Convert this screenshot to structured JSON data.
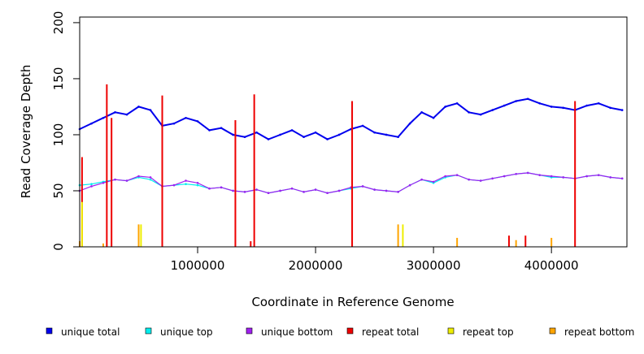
{
  "chart_data": {
    "type": "line",
    "title": "",
    "xlabel": "Coordinate in Reference Genome",
    "ylabel": "Read Coverage Depth",
    "xlim": [
      0,
      4640000
    ],
    "ylim": [
      0,
      205
    ],
    "x_ticks": [
      1000000,
      2000000,
      3000000,
      4000000
    ],
    "x_tick_labels": [
      "1000000",
      "2000000",
      "3000000",
      "4000000"
    ],
    "y_ticks": [
      0,
      50,
      100,
      150,
      200
    ],
    "y_tick_labels": [
      "0",
      "50",
      "100",
      "150",
      "200"
    ],
    "grid": false,
    "legend_position": "bottom",
    "series": [
      {
        "name": "unique total",
        "color": "#0000ee",
        "x": [
          0,
          100000,
          200000,
          300000,
          400000,
          500000,
          600000,
          700000,
          800000,
          900000,
          1000000,
          1100000,
          1200000,
          1300000,
          1400000,
          1500000,
          1600000,
          1700000,
          1800000,
          1900000,
          2000000,
          2100000,
          2200000,
          2300000,
          2400000,
          2500000,
          2600000,
          2700000,
          2800000,
          2900000,
          3000000,
          3100000,
          3200000,
          3300000,
          3400000,
          3500000,
          3600000,
          3700000,
          3800000,
          3900000,
          4000000,
          4100000,
          4200000,
          4300000,
          4400000,
          4500000,
          4600000
        ],
        "values": [
          105,
          110,
          115,
          120,
          118,
          125,
          122,
          108,
          110,
          115,
          112,
          104,
          106,
          100,
          98,
          102,
          96,
          100,
          104,
          98,
          102,
          96,
          100,
          105,
          108,
          102,
          100,
          98,
          110,
          120,
          115,
          125,
          128,
          120,
          118,
          122,
          126,
          130,
          132,
          128,
          125,
          124,
          122,
          126,
          128,
          124,
          122
        ]
      },
      {
        "name": "unique top",
        "color": "#00eeee",
        "x": [
          0,
          100000,
          200000,
          300000,
          400000,
          500000,
          600000,
          700000,
          800000,
          900000,
          1000000,
          1100000,
          1200000,
          1300000,
          1400000,
          1500000,
          1600000,
          1700000,
          1800000,
          1900000,
          2000000,
          2100000,
          2200000,
          2300000,
          2400000,
          2500000,
          2600000,
          2700000,
          2800000,
          2900000,
          3000000,
          3100000,
          3200000,
          3300000,
          3400000,
          3500000,
          3600000,
          3700000,
          3800000,
          3900000,
          4000000,
          4100000,
          4200000,
          4300000,
          4400000,
          4500000,
          4600000
        ],
        "values": [
          55,
          56,
          58,
          60,
          59,
          62,
          60,
          54,
          55,
          56,
          55,
          52,
          53,
          50,
          49,
          51,
          48,
          50,
          52,
          49,
          51,
          48,
          50,
          52,
          54,
          51,
          50,
          49,
          55,
          60,
          57,
          62,
          64,
          60,
          59,
          61,
          63,
          65,
          66,
          64,
          62,
          62,
          61,
          63,
          64,
          62,
          61
        ]
      },
      {
        "name": "unique bottom",
        "color": "#a020f0",
        "x": [
          0,
          100000,
          200000,
          300000,
          400000,
          500000,
          600000,
          700000,
          800000,
          900000,
          1000000,
          1100000,
          1200000,
          1300000,
          1400000,
          1500000,
          1600000,
          1700000,
          1800000,
          1900000,
          2000000,
          2100000,
          2200000,
          2300000,
          2400000,
          2500000,
          2600000,
          2700000,
          2800000,
          2900000,
          3000000,
          3100000,
          3200000,
          3300000,
          3400000,
          3500000,
          3600000,
          3700000,
          3800000,
          3900000,
          4000000,
          4100000,
          4200000,
          4300000,
          4400000,
          4500000,
          4600000
        ],
        "values": [
          50,
          54,
          57,
          60,
          59,
          63,
          62,
          54,
          55,
          59,
          57,
          52,
          53,
          50,
          49,
          51,
          48,
          50,
          52,
          49,
          51,
          48,
          50,
          53,
          54,
          51,
          50,
          49,
          55,
          60,
          58,
          63,
          64,
          60,
          59,
          61,
          63,
          65,
          66,
          64,
          63,
          62,
          61,
          63,
          64,
          62,
          61
        ]
      },
      {
        "name": "repeat total",
        "color": "#ee0000",
        "x": [
          20000,
          230000,
          270000,
          700000,
          1320000,
          1450000,
          1480000,
          2310000,
          3640000,
          3780000,
          4200000
        ],
        "values": [
          80,
          145,
          115,
          135,
          113,
          5,
          136,
          130,
          10,
          10,
          130
        ]
      },
      {
        "name": "repeat top",
        "color": "#eeee00",
        "x": [
          20000,
          520000,
          2740000
        ],
        "values": [
          40,
          20,
          20
        ]
      },
      {
        "name": "repeat bottom",
        "color": "#ffa500",
        "x": [
          0,
          100000,
          200000,
          300000,
          400000,
          500000,
          600000,
          700000,
          800000,
          900000,
          1000000,
          1100000,
          1200000,
          1300000,
          1400000,
          1500000,
          1600000,
          1700000,
          1800000,
          1900000,
          2000000,
          2100000,
          2200000,
          2300000,
          2400000,
          2500000,
          2600000,
          2700000,
          2800000,
          2900000,
          3000000,
          3100000,
          3200000,
          3300000,
          3400000,
          3500000,
          3600000,
          3700000,
          3800000,
          3900000,
          4000000,
          4100000,
          4200000,
          4300000,
          4400000,
          4500000,
          4600000
        ],
        "values": [
          5,
          0,
          3,
          0,
          0,
          20,
          0,
          0,
          0,
          0,
          0,
          0,
          0,
          0,
          0,
          0,
          0,
          0,
          0,
          0,
          0,
          0,
          0,
          0,
          0,
          0,
          0,
          20,
          0,
          0,
          0,
          0,
          8,
          0,
          0,
          0,
          0,
          6,
          0,
          0,
          8,
          0,
          0,
          0,
          0,
          0,
          0
        ]
      }
    ]
  }
}
